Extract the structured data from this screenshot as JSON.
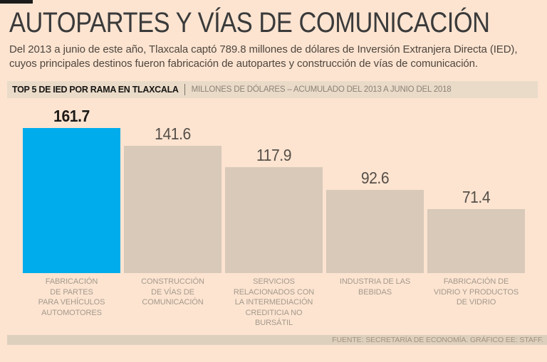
{
  "page": {
    "title": "AUTOPARTES Y VÍAS DE COMUNICACIÓN",
    "subtitle_lines": [
      "Del 2013 a junio de este año, Tlaxcala captó 789.8 millones de dólares de Inversión Extranjera Directa (IED),",
      "cuyos principales destinos fueron fabricación de autopartes y construcción de vías de comunicación."
    ]
  },
  "chart_header": {
    "title": "TOP 5 DE IED POR RAMA EN TLAXCALA",
    "units": "MILLONES DE DÓLARES – ACUMULADO DEL 2013 A JUNIO DEL 2018"
  },
  "chart_data": {
    "type": "bar",
    "title": "TOP 5 DE IED POR RAMA EN TLAXCALA",
    "subtitle": "MILLONES DE DÓLARES – ACUMULADO DEL 2013 A JUNIO DEL 2018",
    "categories": [
      "FABRICACIÓN\nDE PARTES\nPARA VEHÍCULOS\nAUTOMOTORES",
      "CONSTRUCCIÓN\nDE VÍAS DE\nCOMUNICACIÓN",
      "SERVICIOS\nRELACIONADOS CON\nLA INTERMEDIACIÓN\nCREDITICIA NO\nBURSÁTIL",
      "INDUSTRIA DE LAS\nBEBIDAS",
      "FABRICACIÓN DE\nVIDRIO Y PRODUCTOS\nDE VIDRIO"
    ],
    "values": [
      161.7,
      141.6,
      117.9,
      92.6,
      71.4
    ],
    "value_labels": true,
    "highlight_index": 0,
    "ylim": [
      0,
      170
    ],
    "grid": false,
    "legend": false,
    "xlabel": "",
    "ylabel": ""
  },
  "theme": {
    "background": "#fce4d1",
    "header_strip": "#eadbc9",
    "footer_strip": "#ddd0bd",
    "highlight_bar": "#00aceb",
    "default_bar": "#d8c9b9",
    "value_label": "#564f48",
    "highlight_value_label": "#1d1a17",
    "category_label": "#a5998b"
  },
  "footer": {
    "source": "FUENTE: SECRETARÍA DE ECONOMÍA. GRÁFICO EE: STAFF."
  }
}
